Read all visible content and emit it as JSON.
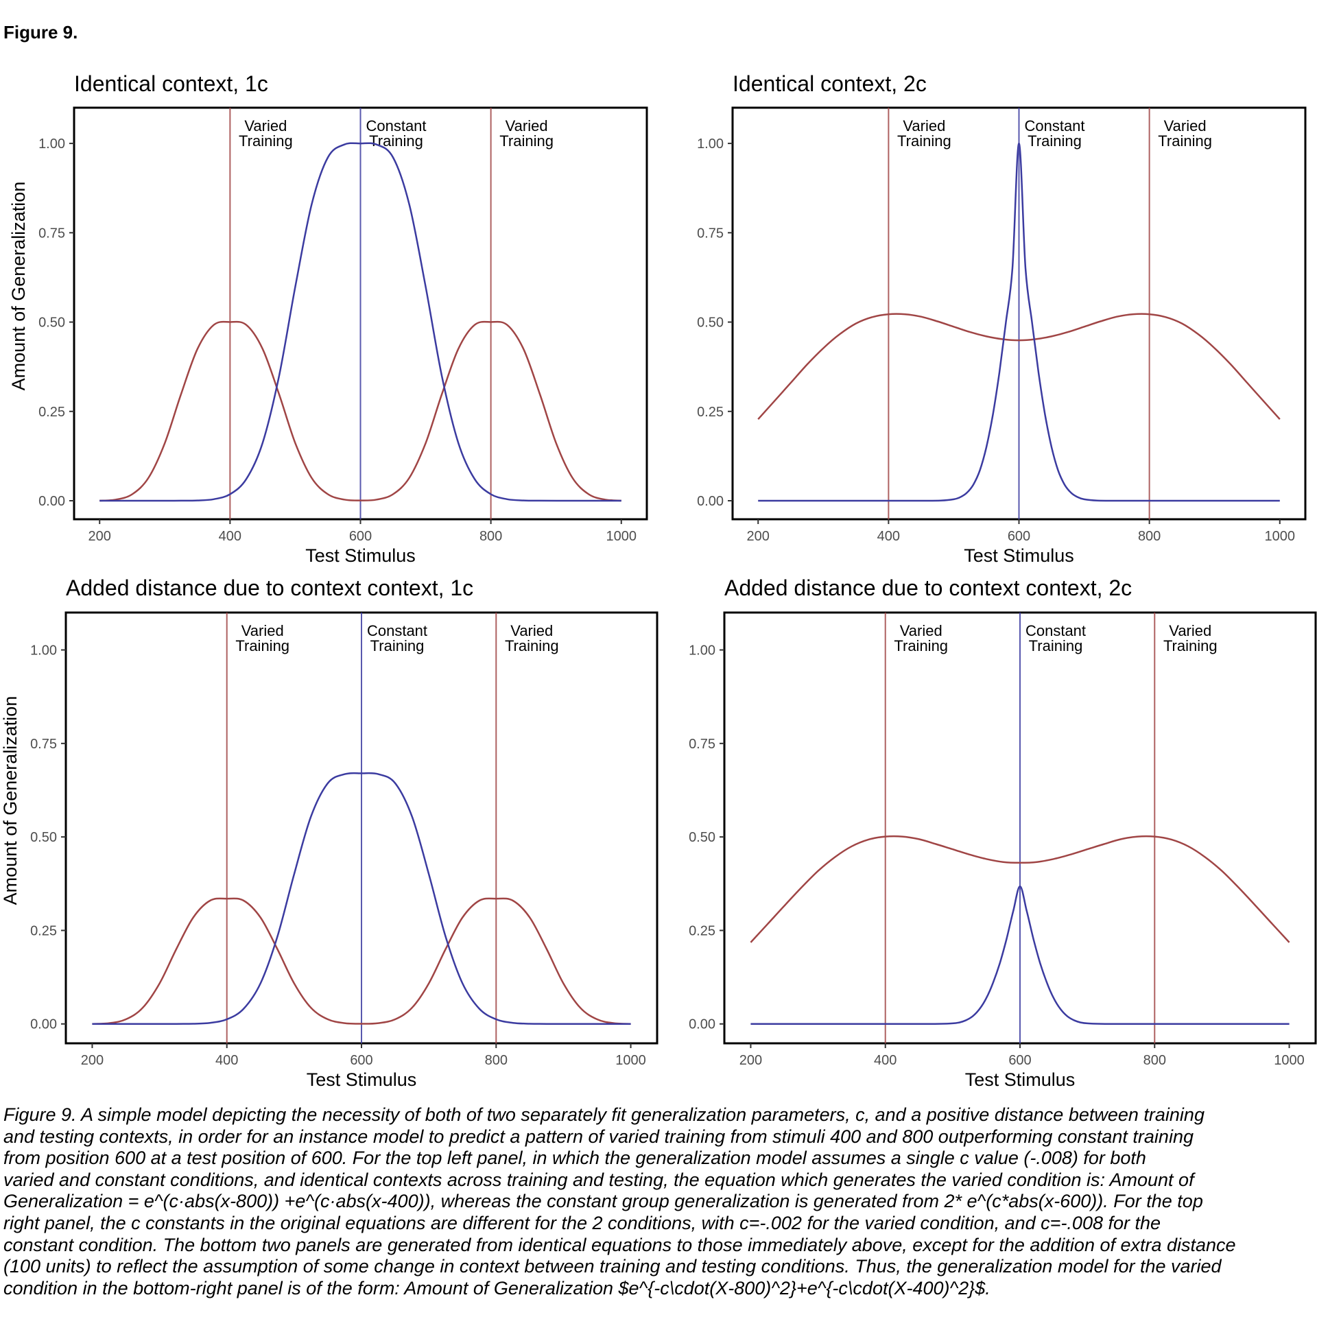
{
  "figure_label": "Figure 9.",
  "colors": {
    "varied": "#A04545",
    "constant": "#3B3BA0"
  },
  "chart_data": [
    {
      "type": "line",
      "title": "Identical context, 1c",
      "xlabel": "Test Stimulus",
      "ylabel": "Amount of Generalization",
      "xlim": [
        200,
        1000
      ],
      "ylim": [
        0,
        1.1
      ],
      "xticks": [
        "200",
        "400",
        "600",
        "800",
        "1000"
      ],
      "yticks": [
        "0.00",
        "0.25",
        "0.50",
        "0.75",
        "1.00"
      ],
      "grid": false,
      "annotations": [
        {
          "x": 400,
          "line1": "Varied",
          "line2": "Training",
          "series": "varied"
        },
        {
          "x": 600,
          "line1": "Constant",
          "line2": "Training",
          "series": "constant"
        },
        {
          "x": 800,
          "line1": "Varied",
          "line2": "Training",
          "series": "varied"
        }
      ],
      "series": [
        {
          "key": "varied",
          "x": [
            200,
            225,
            250,
            275,
            300,
            325,
            350,
            375,
            400,
            425,
            450,
            475,
            500,
            525,
            550,
            575,
            600,
            625,
            650,
            675,
            700,
            725,
            750,
            775,
            800,
            825,
            850,
            875,
            900,
            925,
            950,
            975,
            1000
          ],
          "values": [
            0.0002,
            0.0032,
            0.0183,
            0.0644,
            0.1615,
            0.2991,
            0.4247,
            0.492,
            0.5,
            0.492,
            0.4247,
            0.2991,
            0.1615,
            0.0644,
            0.0183,
            0.0032,
            0.0007,
            0.0032,
            0.0183,
            0.0644,
            0.1615,
            0.2991,
            0.4247,
            0.492,
            0.5,
            0.492,
            0.4247,
            0.2991,
            0.1615,
            0.0644,
            0.0183,
            0.0032,
            0.0002
          ]
        },
        {
          "key": "constant",
          "x": [
            200,
            225,
            250,
            275,
            300,
            325,
            350,
            375,
            400,
            425,
            450,
            475,
            500,
            525,
            550,
            575,
            600,
            625,
            650,
            675,
            700,
            725,
            750,
            775,
            800,
            825,
            850,
            875,
            900,
            925,
            950,
            975,
            1000
          ],
          "values": [
            0,
            0,
            0,
            0,
            0,
            0.0001,
            0.0007,
            0.0043,
            0.0183,
            0.0608,
            0.1623,
            0.3474,
            0.5983,
            0.8282,
            0.9608,
            0.9968,
            1.0,
            0.9968,
            0.9608,
            0.8282,
            0.5983,
            0.3474,
            0.1623,
            0.0608,
            0.0183,
            0.0043,
            0.0007,
            0.0001,
            0,
            0,
            0,
            0,
            0
          ]
        }
      ]
    },
    {
      "type": "line",
      "title": "Identical context, 2c",
      "xlabel": "Test Stimulus",
      "ylabel": "",
      "xlim": [
        200,
        1000
      ],
      "ylim": [
        0,
        1.1
      ],
      "xticks": [
        "200",
        "400",
        "600",
        "800",
        "1000"
      ],
      "yticks": [
        "0.00",
        "0.25",
        "0.50",
        "0.75",
        "1.00"
      ],
      "grid": false,
      "annotations": [
        {
          "x": 400,
          "line1": "Varied",
          "line2": "Training",
          "series": "varied"
        },
        {
          "x": 600,
          "line1": "Constant",
          "line2": "Training",
          "series": "constant"
        },
        {
          "x": 800,
          "line1": "Varied",
          "line2": "Training",
          "series": "varied"
        }
      ],
      "series": [
        {
          "key": "varied",
          "x": [
            200,
            225,
            250,
            275,
            300,
            325,
            350,
            375,
            400,
            425,
            450,
            475,
            500,
            525,
            550,
            575,
            600,
            625,
            650,
            675,
            700,
            725,
            750,
            775,
            800,
            825,
            850,
            875,
            900,
            925,
            950,
            975,
            1000
          ],
          "values": [
            0.228,
            0.279,
            0.33,
            0.381,
            0.427,
            0.466,
            0.496,
            0.514,
            0.522,
            0.522,
            0.515,
            0.502,
            0.487,
            0.472,
            0.46,
            0.452,
            0.449,
            0.452,
            0.46,
            0.472,
            0.487,
            0.502,
            0.515,
            0.522,
            0.522,
            0.514,
            0.496,
            0.466,
            0.427,
            0.381,
            0.33,
            0.279,
            0.228
          ]
        },
        {
          "key": "constant",
          "x": [
            200,
            300,
            400,
            450,
            480,
            500,
            510,
            520,
            530,
            540,
            550,
            560,
            570,
            580,
            590,
            600,
            610,
            620,
            630,
            640,
            650,
            660,
            670,
            680,
            690,
            700,
            720,
            750,
            800,
            900,
            1000
          ],
          "values": [
            0,
            0,
            0,
            0,
            0.0004,
            0.004,
            0.01,
            0.022,
            0.045,
            0.085,
            0.15,
            0.241,
            0.359,
            0.5,
            0.651,
            1.0,
            0.651,
            0.5,
            0.359,
            0.241,
            0.15,
            0.085,
            0.045,
            0.022,
            0.01,
            0.004,
            0.0004,
            0,
            0,
            0,
            0
          ]
        }
      ]
    },
    {
      "type": "line",
      "title": "Added distance due to context context, 1c",
      "xlabel": "Test Stimulus",
      "ylabel": "Amount of Generalization",
      "xlim": [
        200,
        1000
      ],
      "ylim": [
        0,
        1.1
      ],
      "xticks": [
        "200",
        "400",
        "600",
        "800",
        "1000"
      ],
      "yticks": [
        "0.00",
        "0.25",
        "0.50",
        "0.75",
        "1.00"
      ],
      "grid": false,
      "annotations": [
        {
          "x": 400,
          "line1": "Varied",
          "line2": "Training",
          "series": "varied"
        },
        {
          "x": 600,
          "line1": "Constant",
          "line2": "Training",
          "series": "constant"
        },
        {
          "x": 800,
          "line1": "Varied",
          "line2": "Training",
          "series": "varied"
        }
      ],
      "series": [
        {
          "key": "varied",
          "x": [
            200,
            225,
            250,
            275,
            300,
            325,
            350,
            375,
            400,
            425,
            450,
            475,
            500,
            525,
            550,
            575,
            600,
            625,
            650,
            675,
            700,
            725,
            750,
            775,
            800,
            825,
            850,
            875,
            900,
            925,
            950,
            975,
            1000
          ],
          "values": [
            0.0001,
            0.0021,
            0.0123,
            0.0431,
            0.1082,
            0.2004,
            0.2845,
            0.3296,
            0.335,
            0.3296,
            0.2845,
            0.2004,
            0.1082,
            0.0431,
            0.0123,
            0.0021,
            0.0004,
            0.0021,
            0.0123,
            0.0431,
            0.1082,
            0.2004,
            0.2845,
            0.3296,
            0.335,
            0.3296,
            0.2845,
            0.2004,
            0.1082,
            0.0431,
            0.0123,
            0.0021,
            0.0001
          ]
        },
        {
          "key": "constant",
          "x": [
            200,
            225,
            250,
            275,
            300,
            325,
            350,
            375,
            400,
            425,
            450,
            475,
            500,
            525,
            550,
            575,
            600,
            625,
            650,
            675,
            700,
            725,
            750,
            775,
            800,
            825,
            850,
            875,
            900,
            925,
            950,
            975,
            1000
          ],
          "values": [
            0,
            0,
            0,
            0,
            0,
            0.0001,
            0.0005,
            0.0029,
            0.0123,
            0.0407,
            0.1087,
            0.2328,
            0.4009,
            0.5549,
            0.6437,
            0.6679,
            0.67,
            0.6679,
            0.6437,
            0.5549,
            0.4009,
            0.2328,
            0.1087,
            0.0407,
            0.0123,
            0.0029,
            0.0005,
            0.0001,
            0,
            0,
            0,
            0,
            0
          ]
        }
      ]
    },
    {
      "type": "line",
      "title": "Added distance due to context context, 2c",
      "xlabel": "Test Stimulus",
      "ylabel": "",
      "xlim": [
        200,
        1000
      ],
      "ylim": [
        0,
        1.1
      ],
      "xticks": [
        "200",
        "400",
        "600",
        "800",
        "1000"
      ],
      "yticks": [
        "0.00",
        "0.25",
        "0.50",
        "0.75",
        "1.00"
      ],
      "grid": false,
      "annotations": [
        {
          "x": 400,
          "line1": "Varied",
          "line2": "Training",
          "series": "varied"
        },
        {
          "x": 600,
          "line1": "Constant",
          "line2": "Training",
          "series": "constant"
        },
        {
          "x": 800,
          "line1": "Varied",
          "line2": "Training",
          "series": "varied"
        }
      ],
      "series": [
        {
          "key": "varied",
          "x": [
            200,
            225,
            250,
            275,
            300,
            325,
            350,
            375,
            400,
            425,
            450,
            475,
            500,
            525,
            550,
            575,
            600,
            625,
            650,
            675,
            700,
            725,
            750,
            775,
            800,
            825,
            850,
            875,
            900,
            925,
            950,
            975,
            1000
          ],
          "values": [
            0.218,
            0.267,
            0.316,
            0.364,
            0.409,
            0.446,
            0.475,
            0.493,
            0.501,
            0.501,
            0.494,
            0.481,
            0.467,
            0.453,
            0.441,
            0.433,
            0.431,
            0.433,
            0.441,
            0.453,
            0.467,
            0.481,
            0.494,
            0.501,
            0.501,
            0.493,
            0.475,
            0.446,
            0.409,
            0.364,
            0.316,
            0.267,
            0.218
          ]
        },
        {
          "key": "constant",
          "x": [
            200,
            300,
            400,
            450,
            480,
            500,
            510,
            520,
            530,
            540,
            550,
            560,
            570,
            580,
            590,
            600,
            610,
            620,
            630,
            640,
            650,
            660,
            670,
            680,
            690,
            700,
            720,
            750,
            800,
            900,
            1000
          ],
          "values": [
            0,
            0,
            0,
            0,
            0.0002,
            0.0015,
            0.004,
            0.01,
            0.021,
            0.04,
            0.069,
            0.11,
            0.162,
            0.227,
            0.302,
            0.368,
            0.302,
            0.227,
            0.162,
            0.11,
            0.069,
            0.04,
            0.021,
            0.01,
            0.004,
            0.0015,
            0.0002,
            0,
            0,
            0,
            0
          ]
        }
      ]
    }
  ],
  "caption_lines": [
    "Figure 9. A simple model depicting the necessity of both of two separately fit generalization parameters, c, and a positive distance between training",
    "and testing contexts, in order for an instance model to predict a pattern of varied training from stimuli 400 and 800 outperforming constant training",
    "from position 600 at a test position of 600. For the top left panel, in which the generalization model assumes a single c value (-.008) for both",
    "varied and constant conditions, and identical contexts across training and testing, the equation which generates the varied condition is: Amount of",
    "Generalization = e^(c·abs(x-800)) +e^(c·abs(x-400)), whereas the constant group generalization is generated from 2* e^(c*abs(x-600)). For the top",
    "right panel, the c constants in the original equations are different for the 2 conditions, with c=-.002 for the varied condition, and c=-.008 for the",
    "constant condition. The bottom two panels are generated from identical equations to those immediately above, except for the addition of extra distance",
    "(100 units) to reflect the assumption of some change in context between training and testing conditions. Thus, the generalization model for the varied",
    "condition in the bottom-right panel is of the form: Amount of Generalization $e^{-c\\cdot(X-800)^2}+e^{-c\\cdot(X-400)^2}$."
  ]
}
